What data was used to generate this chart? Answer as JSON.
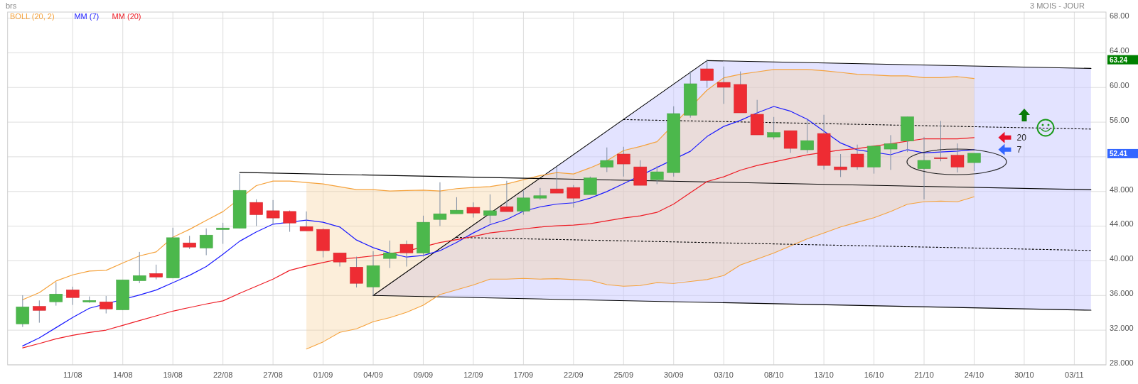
{
  "chart_data": {
    "type": "candlestick",
    "title": "brs",
    "subtitle": "3 MOIS - JOUR",
    "legend": "top left",
    "grid": true,
    "categories": [
      null,
      null,
      null,
      "11/08",
      null,
      null,
      "14/08",
      null,
      null,
      "19/08",
      null,
      null,
      "22/08",
      null,
      null,
      "27/08",
      null,
      null,
      "01/09",
      null,
      null,
      "04/09",
      null,
      null,
      "09/09",
      null,
      null,
      "12/09",
      null,
      null,
      "17/09",
      null,
      null,
      "22/09",
      null,
      null,
      "25/09",
      null,
      null,
      "30/09",
      null,
      null,
      "03/10",
      null,
      null,
      "08/10",
      null,
      null,
      "13/10",
      null,
      null,
      "16/10",
      null,
      null,
      "21/10",
      null,
      null,
      "24/10",
      null,
      null,
      "30/10",
      null,
      null,
      "03/11",
      null
    ],
    "ylim": [
      28,
      68.7
    ],
    "yticks": [
      {
        "value": 28,
        "label": "28.000"
      },
      {
        "value": 32,
        "label": "32.000"
      },
      {
        "value": 36,
        "label": "36.000"
      },
      {
        "value": 40,
        "label": "40.000"
      },
      {
        "value": 44,
        "label": "44.000"
      },
      {
        "value": 48,
        "label": "48.000"
      },
      {
        "value": 52,
        "label": null
      },
      {
        "value": 56,
        "label": "56.00"
      },
      {
        "value": 60,
        "label": "60.00"
      },
      {
        "value": 64,
        "label": "64.00"
      },
      {
        "value": 68,
        "label": "68.00"
      }
    ],
    "ohlc": [
      [
        32.72,
        36.03,
        32.37,
        34.69
      ],
      [
        34.75,
        35.43,
        32.86,
        34.28
      ],
      [
        35.27,
        37.53,
        34.83,
        36.17
      ],
      [
        36.66,
        37.02,
        34.91,
        35.76
      ],
      [
        35.24,
        35.89,
        35.16,
        35.43
      ],
      [
        35.27,
        35.95,
        33.93,
        34.45
      ],
      [
        34.34,
        37.81,
        34.34,
        37.81
      ],
      [
        37.7,
        41.03,
        37.42,
        38.3
      ],
      [
        38.54,
        39.56,
        37.86,
        38.13
      ],
      [
        38.02,
        43.82,
        38.02,
        42.67
      ],
      [
        42.07,
        42.89,
        41.36,
        41.58
      ],
      [
        41.47,
        43.74,
        40.65,
        42.97
      ],
      [
        43.6,
        44.39,
        41.96,
        43.79
      ],
      [
        43.76,
        50.05,
        43.76,
        48.13
      ],
      [
        46.74,
        47.1,
        44.01,
        45.32
      ],
      [
        45.78,
        47.01,
        44.23,
        44.94
      ],
      [
        45.7,
        45.81,
        43.35,
        44.36
      ],
      [
        43.95,
        45.7,
        43.46,
        43.46
      ],
      [
        43.63,
        43.75,
        40.4,
        41.17
      ],
      [
        40.92,
        40.92,
        39.34,
        39.86
      ],
      [
        39.28,
        40.48,
        36.93,
        37.4
      ],
      [
        36.99,
        41.11,
        35.98,
        39.45
      ],
      [
        40.27,
        42.34,
        39.17,
        40.92
      ],
      [
        41.91,
        42.34,
        39.34,
        40.92
      ],
      [
        40.89,
        45.21,
        40.48,
        44.45
      ],
      [
        44.77,
        49.06,
        44.01,
        45.43
      ],
      [
        45.43,
        47.34,
        45.43,
        45.84
      ],
      [
        46.17,
        46.74,
        44.99,
        45.51
      ],
      [
        45.24,
        47.67,
        44.34,
        45.78
      ],
      [
        46.25,
        49.23,
        45.68,
        45.68
      ],
      [
        45.73,
        48.1,
        45.32,
        47.26
      ],
      [
        47.23,
        48.41,
        47.04,
        47.51
      ],
      [
        48.3,
        50.87,
        47.81,
        47.81
      ],
      [
        48.46,
        48.74,
        46.14,
        47.23
      ],
      [
        47.64,
        49.72,
        47.64,
        49.56
      ],
      [
        50.81,
        53.08,
        50.24,
        51.58
      ],
      [
        52.32,
        53.16,
        49.72,
        51.17
      ],
      [
        50.84,
        51.6,
        48.71,
        48.71
      ],
      [
        49.36,
        50.95,
        48.85,
        50.27
      ],
      [
        50.18,
        57.83,
        49.72,
        56.99
      ],
      [
        56.8,
        61.9,
        56.52,
        60.43
      ],
      [
        62.15,
        63.24,
        59.97,
        60.81
      ],
      [
        60.59,
        62.42,
        58.11,
        60.02
      ],
      [
        60.35,
        61.85,
        57.07,
        57.07
      ],
      [
        56.91,
        58.57,
        54.53,
        54.53
      ],
      [
        54.28,
        56.6,
        54.01,
        54.8
      ],
      [
        55.02,
        55.02,
        52.45,
        52.97
      ],
      [
        52.81,
        56.33,
        52.45,
        53.87
      ],
      [
        54.69,
        56.85,
        50.54,
        51.0
      ],
      [
        50.84,
        52.32,
        49.67,
        50.51
      ],
      [
        52.32,
        53.41,
        50.51,
        50.84
      ],
      [
        50.82,
        53.23,
        50.06,
        53.23
      ],
      [
        52.89,
        54.5,
        50.49,
        53.51
      ],
      [
        53.82,
        56.62,
        52.55,
        56.62
      ],
      [
        50.63,
        54.3,
        47.09,
        51.59
      ],
      [
        51.9,
        56.14,
        51.48,
        51.81
      ],
      [
        52.18,
        53.54,
        50.2,
        50.82
      ],
      [
        51.33,
        52.41,
        50.34,
        52.41
      ],
      null,
      null,
      null,
      null,
      null,
      null,
      null
    ],
    "series": [
      {
        "type": "line",
        "color": "#000000",
        "line_style": "solid",
        "values": [
          null,
          null,
          null,
          null,
          null,
          null,
          null,
          null,
          null,
          null,
          null,
          null,
          null,
          null,
          null,
          null,
          null,
          null,
          null,
          null,
          null,
          36.0,
          null,
          null,
          null,
          null,
          null,
          null,
          null,
          null,
          null,
          null,
          null,
          null,
          null,
          null,
          null,
          null,
          null,
          null,
          null,
          63.1,
          null,
          null,
          null,
          null,
          null,
          null,
          null,
          null,
          null,
          null,
          null,
          null,
          null,
          null,
          null,
          null,
          null,
          null,
          null,
          null,
          null,
          null,
          62.2
        ]
      },
      {
        "type": "line",
        "color": "#000000",
        "line_style": "solid",
        "values": [
          null,
          null,
          null,
          null,
          null,
          null,
          null,
          null,
          null,
          null,
          null,
          null,
          null,
          null,
          null,
          null,
          null,
          null,
          null,
          null,
          null,
          36.0,
          null,
          null,
          null,
          null,
          null,
          null,
          null,
          null,
          null,
          null,
          null,
          null,
          null,
          null,
          null,
          null,
          null,
          null,
          null,
          null,
          null,
          null,
          null,
          null,
          null,
          null,
          null,
          null,
          null,
          null,
          null,
          null,
          null,
          null,
          null,
          null,
          null,
          null,
          null,
          null,
          null,
          null,
          34.3
        ]
      },
      {
        "name": "BOLL (20, 2)",
        "type": "line",
        "color": "#f5a23c",
        "line_style": "solid",
        "values": [
          35.51,
          36.33,
          37.67,
          38.38,
          38.82,
          38.9,
          39.75,
          40.57,
          41.03,
          42.72,
          43.63,
          44.67,
          45.68,
          null,
          48.68,
          49.2,
          49.2,
          49.04,
          48.87,
          48.55,
          48.22,
          48.22,
          48.05,
          48.11,
          48.16,
          48.05,
          48.33,
          48.46,
          48.57,
          48.87,
          49.36,
          49.83,
          50.18,
          50.02,
          50.73,
          51.55,
          52.73,
          53.19,
          53.74,
          null,
          null,
          59.69,
          61.11,
          61.52,
          61.8,
          62.07,
          62.07,
          62.07,
          61.93,
          61.74,
          61.52,
          61.45,
          61.34,
          61.34,
          61.14,
          61.14,
          61.25,
          61.03,
          null,
          null,
          null,
          null,
          null,
          null,
          null
        ]
      },
      {
        "type": "line",
        "color": "#f5a23c",
        "line_style": "solid",
        "values": [
          null,
          null,
          null,
          null,
          null,
          null,
          null,
          null,
          null,
          null,
          null,
          null,
          null,
          null,
          null,
          null,
          null,
          29.83,
          30.65,
          31.74,
          32.15,
          32.97,
          33.44,
          34.06,
          34.88,
          36.11,
          36.66,
          37.21,
          37.89,
          37.89,
          37.97,
          37.89,
          37.94,
          37.84,
          37.75,
          37.26,
          37.07,
          37.15,
          37.48,
          37.4,
          37.62,
          37.84,
          38.3,
          39.53,
          40.21,
          40.89,
          41.71,
          42.53,
          43.22,
          43.9,
          44.45,
          44.97,
          45.68,
          46.53,
          46.81,
          46.89,
          46.81,
          47.38,
          null,
          null,
          null,
          null,
          null,
          null,
          null
        ]
      },
      {
        "type": "line",
        "color": "#000000",
        "line_style": "solid",
        "values": [
          null,
          null,
          null,
          null,
          null,
          null,
          null,
          null,
          null,
          null,
          null,
          null,
          null,
          50.2,
          null,
          null,
          null,
          null,
          null,
          null,
          null,
          null,
          null,
          null,
          null,
          null,
          null,
          null,
          null,
          null,
          null,
          null,
          null,
          null,
          null,
          null,
          null,
          null,
          null,
          null,
          null,
          null,
          null,
          null,
          null,
          null,
          null,
          null,
          null,
          null,
          null,
          null,
          null,
          null,
          null,
          null,
          null,
          null,
          null,
          null,
          null,
          null,
          null,
          null,
          48.2
        ]
      },
      {
        "type": "line",
        "color": "#000000",
        "line_style": "dotted",
        "values": [
          null,
          null,
          null,
          null,
          null,
          null,
          null,
          null,
          null,
          null,
          null,
          null,
          null,
          null,
          null,
          null,
          null,
          null,
          null,
          null,
          null,
          null,
          null,
          null,
          null,
          null,
          null,
          null,
          null,
          null,
          null,
          null,
          null,
          null,
          null,
          null,
          56.3,
          null,
          null,
          null,
          null,
          null,
          null,
          null,
          null,
          null,
          null,
          null,
          null,
          null,
          null,
          null,
          null,
          null,
          null,
          null,
          null,
          null,
          null,
          null,
          null,
          null,
          null,
          null,
          55.2
        ]
      },
      {
        "type": "line",
        "color": "#000000",
        "line_style": "dotted",
        "values": [
          null,
          null,
          null,
          null,
          null,
          null,
          null,
          null,
          null,
          null,
          null,
          null,
          null,
          null,
          null,
          null,
          null,
          null,
          null,
          null,
          null,
          null,
          null,
          null,
          null,
          null,
          42.7,
          null,
          null,
          null,
          null,
          null,
          null,
          null,
          null,
          null,
          null,
          null,
          null,
          null,
          null,
          null,
          null,
          null,
          null,
          null,
          null,
          null,
          null,
          null,
          null,
          null,
          null,
          null,
          null,
          null,
          null,
          null,
          null,
          null,
          null,
          null,
          null,
          null,
          41.2
        ]
      },
      {
        "name": "MM (7)",
        "type": "line",
        "color": "#1a1aff",
        "line_style": "solid",
        "values": [
          30.18,
          31.11,
          32.29,
          33.46,
          34.53,
          null,
          null,
          36.06,
          36.63,
          37.48,
          38.33,
          39.34,
          40.76,
          42.26,
          43.33,
          44.23,
          null,
          44.69,
          44.45,
          43.9,
          42.4,
          41.52,
          40.89,
          40.43,
          40.62,
          41.17,
          42.12,
          43.22,
          44.17,
          44.77,
          45.73,
          46.22,
          46.55,
          46.69,
          47.23,
          47.99,
          48.9,
          null,
          null,
          null,
          52.64,
          54.34,
          55.51,
          56.2,
          57.07,
          57.81,
          57.26,
          56.33,
          null,
          53.6,
          52.8,
          null,
          52.24,
          52.83,
          52.46,
          52.55,
          52.66,
          52.83,
          null,
          null,
          null,
          null,
          null,
          null,
          null
        ]
      },
      {
        "name": "MM (20)",
        "type": "line",
        "color": "#ee1c25",
        "line_style": "solid",
        "values": [
          29.96,
          30.46,
          31.0,
          31.41,
          31.74,
          32.01,
          32.56,
          33.11,
          33.65,
          34.2,
          34.61,
          35.02,
          35.38,
          36.25,
          37.07,
          37.89,
          38.9,
          39.39,
          39.8,
          40.21,
          40.35,
          40.57,
          null,
          41.11,
          null,
          42.12,
          42.45,
          42.81,
          43.22,
          43.44,
          43.68,
          43.9,
          44.04,
          44.12,
          44.28,
          44.61,
          44.94,
          45.18,
          45.59,
          46.55,
          47.86,
          49.15,
          49.69,
          50.46,
          51.0,
          51.41,
          51.82,
          52.23,
          null,
          52.78,
          52.95,
          53.23,
          53.51,
          null,
          54.08,
          54.08,
          54.08,
          54.22,
          null,
          null,
          null,
          null,
          null,
          null,
          null
        ],
        "lower": [
          null,
          null,
          null,
          null,
          null,
          null,
          null,
          null,
          null,
          null,
          null,
          null,
          null,
          null,
          null,
          null,
          null,
          29.83,
          30.65,
          31.74,
          32.15,
          32.97,
          33.44,
          34.06,
          34.88,
          36.11,
          36.66,
          37.21,
          37.89,
          37.89,
          37.97,
          37.89,
          37.94,
          37.84,
          37.75,
          37.26,
          37.07,
          37.15,
          37.48,
          null,
          null,
          37.84,
          38.3,
          39.53,
          40.21,
          40.89,
          41.71,
          42.53,
          43.22,
          43.9,
          44.45,
          44.97,
          45.68,
          46.53,
          46.81,
          46.89,
          46.81,
          47.38,
          null,
          null,
          null,
          null,
          null,
          null,
          null
        ],
        "upper": [
          null,
          null,
          null,
          null,
          null,
          null,
          null,
          null,
          null,
          null,
          null,
          null,
          null,
          null,
          null,
          null,
          null,
          49.04,
          48.87,
          48.55,
          48.22,
          48.22,
          48.05,
          48.11,
          48.16,
          48.05,
          48.33,
          48.46,
          48.57,
          48.87,
          49.36,
          49.83,
          50.18,
          50.02,
          50.73,
          51.55,
          52.73,
          53.19,
          53.74,
          null,
          null,
          59.69,
          61.11,
          61.52,
          61.8,
          62.07,
          62.07,
          62.07,
          61.93,
          61.74,
          61.52,
          61.45,
          61.34,
          61.34,
          61.14,
          61.14,
          61.25,
          61.03,
          null,
          null,
          null,
          null,
          null,
          null,
          null
        ]
      }
    ],
    "annotations": [
      "63.24",
      "52.41",
      "20",
      "7"
    ]
  }
}
